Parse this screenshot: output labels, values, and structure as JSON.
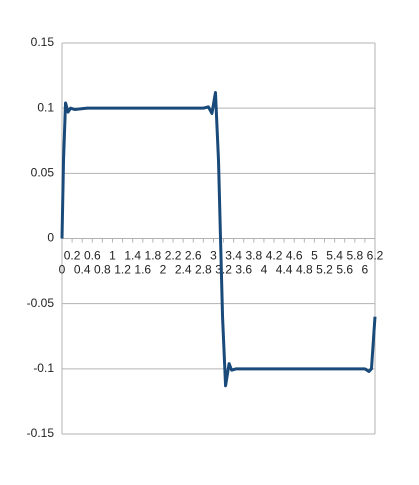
{
  "chart_data": {
    "type": "line",
    "x": [
      0,
      0.03,
      0.07,
      0.12,
      0.17,
      0.25,
      0.5,
      1,
      1.5,
      2,
      2.5,
      2.8,
      2.9,
      2.97,
      3.04,
      3.1,
      3.14,
      3.18,
      3.24,
      3.31,
      3.36,
      3.45,
      4,
      5,
      5.8,
      6.0,
      6.08,
      6.13,
      6.2
    ],
    "series": [
      {
        "color": "#1a4a7a",
        "values": [
          0,
          0.06,
          0.104,
          0.097,
          0.1,
          0.099,
          0.1,
          0.1,
          0.1,
          0.1,
          0.1,
          0.1,
          0.101,
          0.096,
          0.112,
          0.06,
          0,
          -0.06,
          -0.113,
          -0.096,
          -0.101,
          -0.1,
          -0.1,
          -0.1,
          -0.1,
          -0.1,
          -0.102,
          -0.1,
          -0.06
        ]
      }
    ],
    "xlim": [
      0,
      6.2
    ],
    "xticks": [
      0,
      0.2,
      0.4,
      0.6,
      0.8,
      1,
      1.2,
      1.4,
      1.6,
      1.8,
      2,
      2.2,
      2.4,
      2.6,
      2.8,
      3,
      3.2,
      3.4,
      3.6,
      3.8,
      4,
      4.2,
      4.4,
      4.6,
      4.8,
      5,
      5.2,
      5.4,
      5.6,
      5.8,
      6,
      6.2
    ],
    "ylim": [
      -0.15,
      0.15
    ],
    "yticks": [
      -0.15,
      -0.1,
      -0.05,
      0,
      0.05,
      0.1,
      0.15
    ],
    "grid": true
  }
}
